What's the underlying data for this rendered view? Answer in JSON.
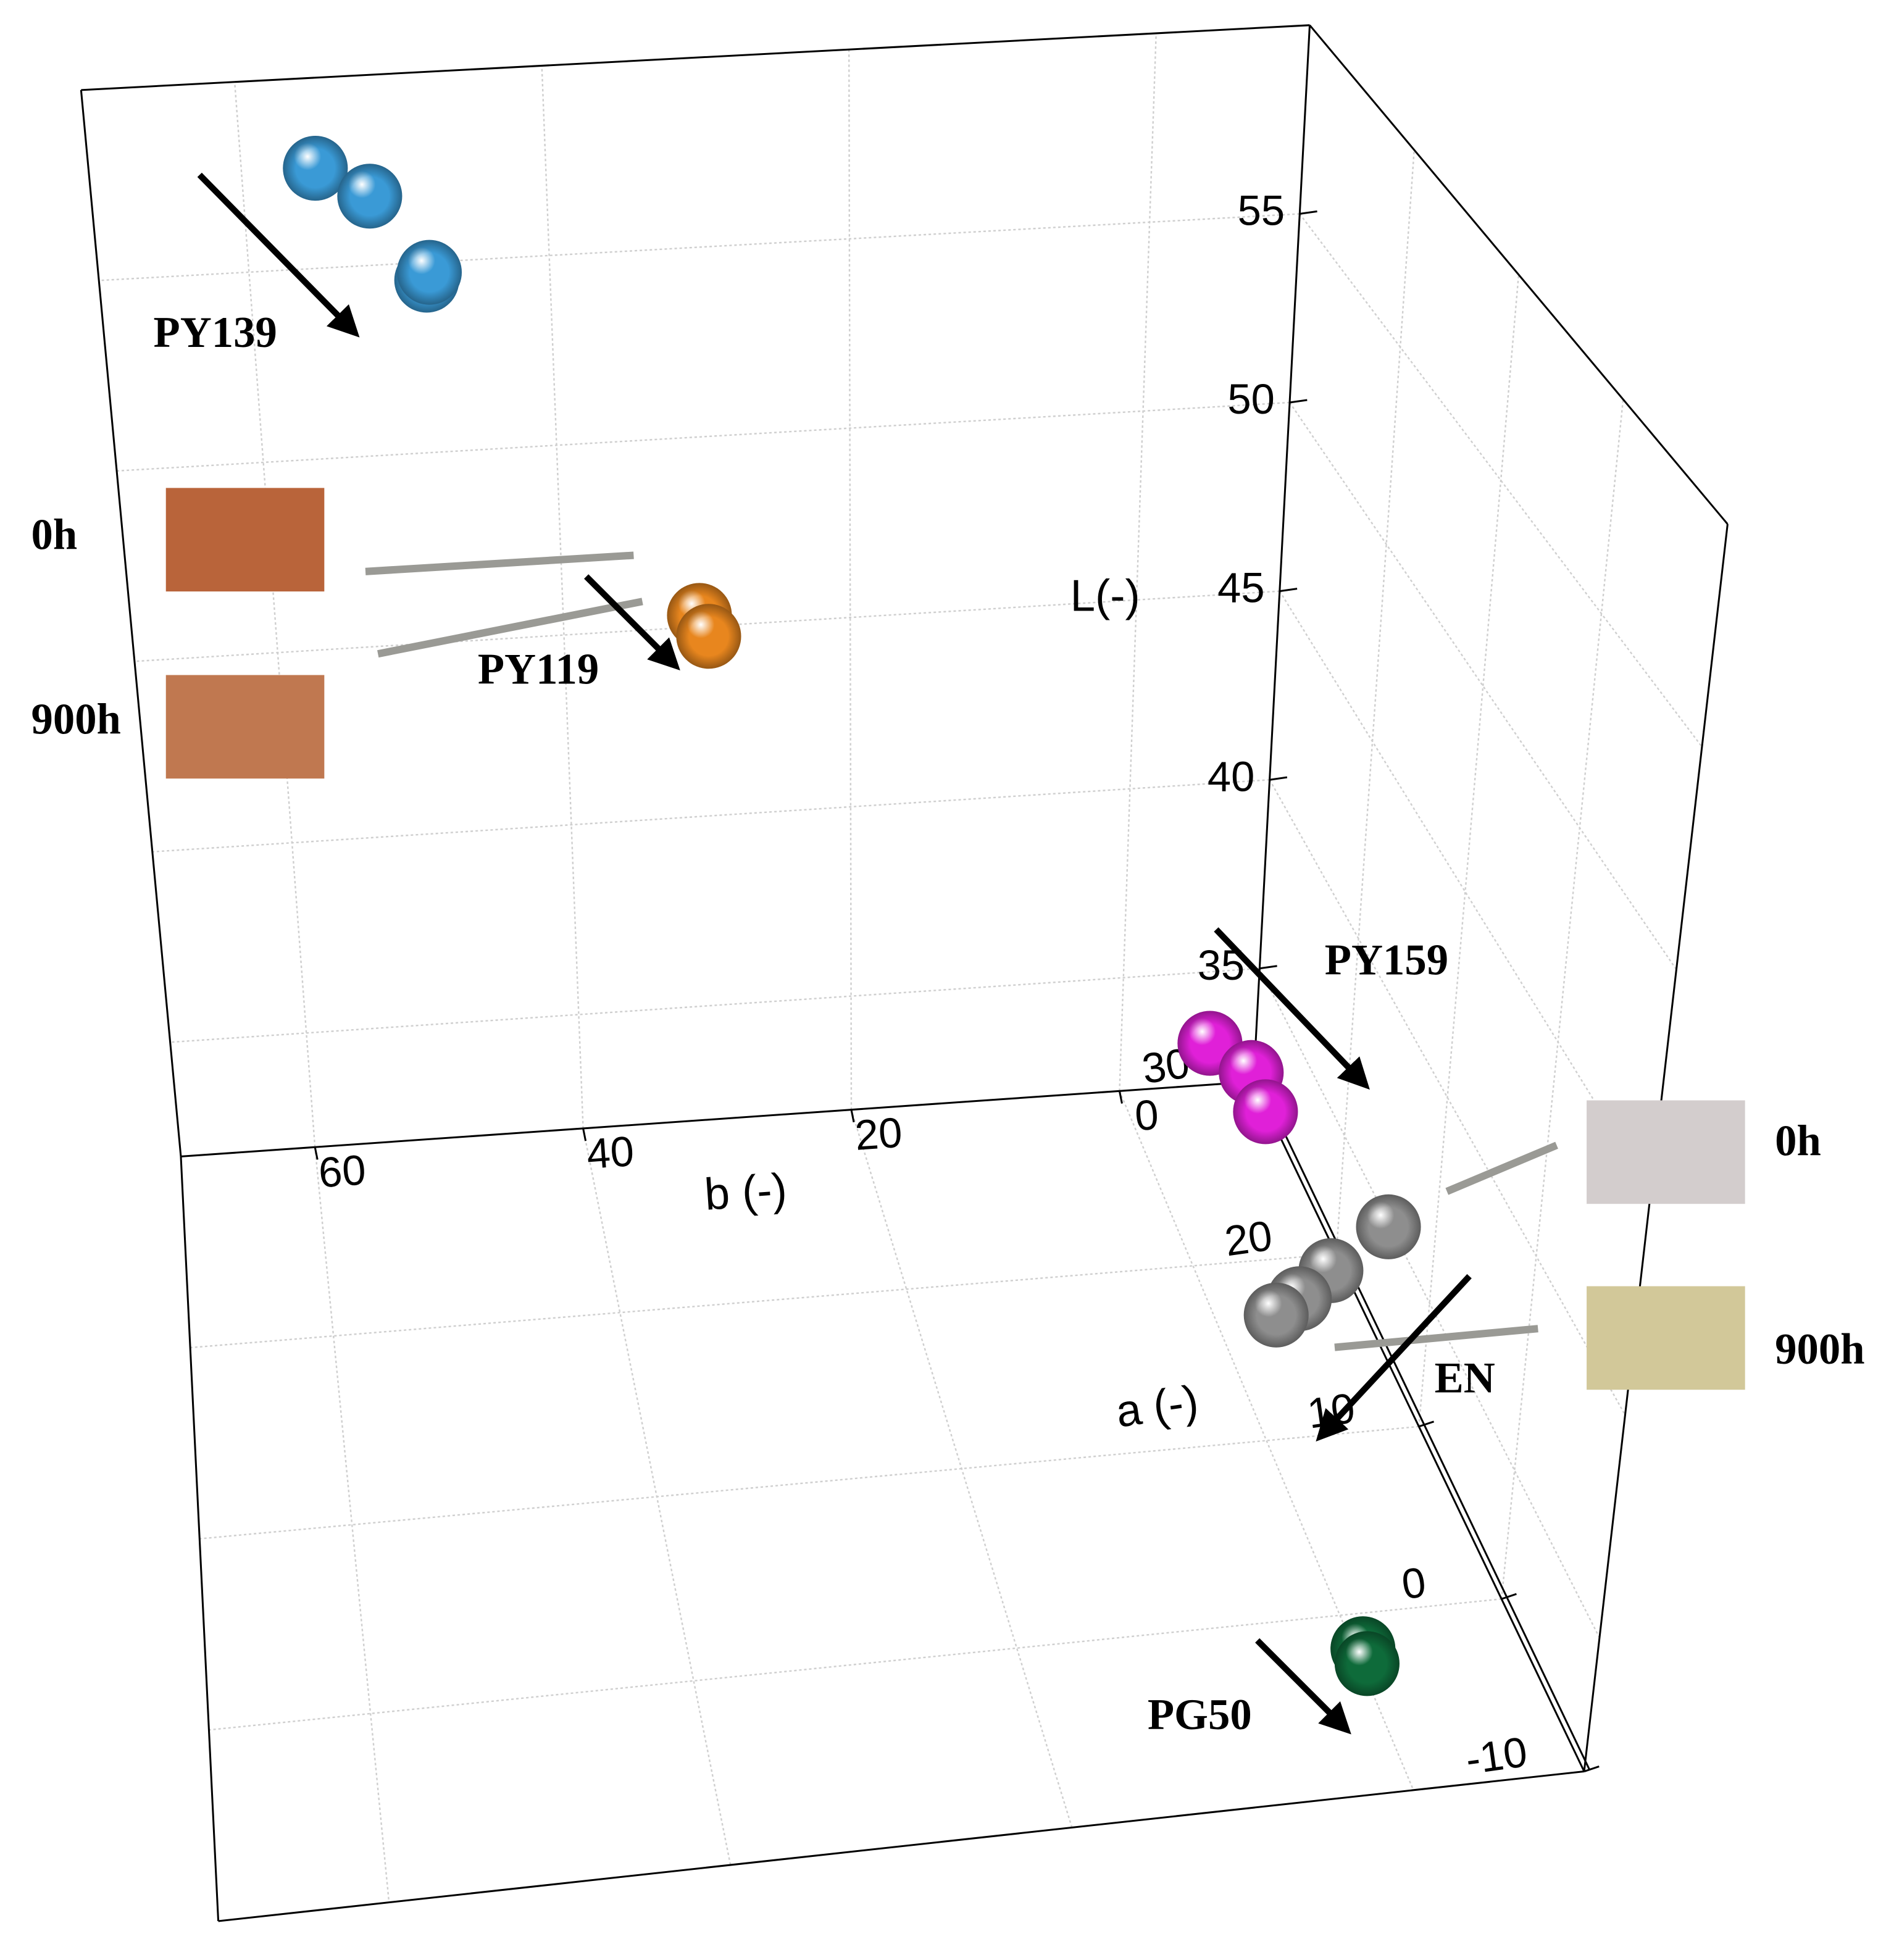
{
  "chart_data": {
    "type": "scatter3d",
    "xlabel": "b (-)",
    "ylabel": "a (-)",
    "zlabel": "L(-)",
    "xlim": [
      -10,
      70
    ],
    "xticks": [
      0,
      20,
      40,
      60
    ],
    "ylim": [
      -10,
      30
    ],
    "yticks": [
      -10,
      0,
      10,
      20,
      30
    ],
    "zlim": [
      32,
      60
    ],
    "zticks": [
      35,
      40,
      45,
      50,
      55
    ],
    "grid": true,
    "series": [
      {
        "name": "PY139",
        "color": "#3a9ad6",
        "x": [
          55,
          51.6,
          48.2,
          48
        ],
        "y": [
          28.8,
          28.8,
          28,
          28
        ],
        "z": [
          58,
          57.2,
          55.2,
          55.4
        ]
      },
      {
        "name": "PY119",
        "color": "#e8861e",
        "x": [
          31,
          30.5
        ],
        "y": [
          28,
          27.6
        ],
        "z": [
          46.1,
          45.7
        ]
      },
      {
        "name": "PY159",
        "color": "#e020d8",
        "x": [
          -6.6,
          -8.7,
          -9.1
        ],
        "y": [
          30,
          28.4,
          27.2
        ],
        "z": [
          33.1,
          33,
          32.5
        ]
      },
      {
        "name": "EN",
        "color": "#8e8e8e",
        "x": [
          -10,
          -8.4,
          -5.6,
          -3.6
        ],
        "y": [
          14.8,
          18,
          16.8,
          16
        ],
        "z": [
          34.9,
          32.5,
          32.4,
          32.4
        ]
      },
      {
        "name": "PG50",
        "color": "#0e6b3a",
        "x": [
          -0.4,
          -0.4
        ],
        "y": [
          -2.2,
          -2.8
        ],
        "z": [
          32.1,
          32
        ]
      }
    ],
    "color_samples": [
      {
        "label": "0h",
        "color": "#b9643a"
      },
      {
        "label": "900h",
        "color": "#c07850"
      },
      {
        "label": "0h",
        "color": "#d3cdcd"
      },
      {
        "label": "900h",
        "color": "#d2c899"
      }
    ]
  }
}
